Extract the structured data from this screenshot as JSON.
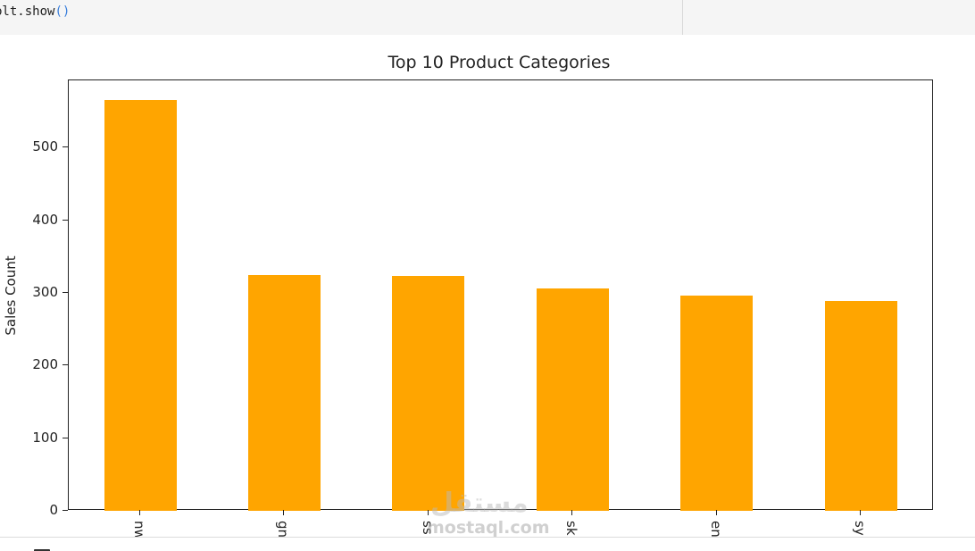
{
  "code_cell": {
    "code_prefix": "plt.show",
    "code_visible": "plt.show",
    "code_parens": "()"
  },
  "colors": {
    "bar": "#ffa500",
    "axes": "#222222",
    "cell_background": "#f5f5f5"
  },
  "chart_data": {
    "type": "bar",
    "title": "Top 10 Product Categories",
    "xlabel": "",
    "ylabel": "Sales Count",
    "categories_visible_fragments": [
      "wn",
      "ng",
      "ss",
      "ks",
      "ne",
      "ys"
    ],
    "categories": [
      "…wn",
      "…ng",
      "…ss",
      "…ks",
      "…ne",
      "…ys"
    ],
    "values": [
      566,
      324,
      323,
      306,
      296,
      289
    ],
    "ylim": [
      0,
      590
    ],
    "yticks": [
      0,
      100,
      200,
      300,
      400,
      500
    ],
    "ytick_labels": [
      "0",
      "100",
      "200",
      "300",
      "400",
      "500"
    ],
    "grid": false,
    "legend": null,
    "bar_color": "#ffa500",
    "note": "Only 6 of 10 bars visible; tick labels rotated 90° and clipped at bottom"
  },
  "watermark": {
    "logo_text": "مستقل",
    "site_text": "mostaql.com"
  },
  "bottom_strip": {
    "partial_text": "T  ·  l  ·  l"
  }
}
